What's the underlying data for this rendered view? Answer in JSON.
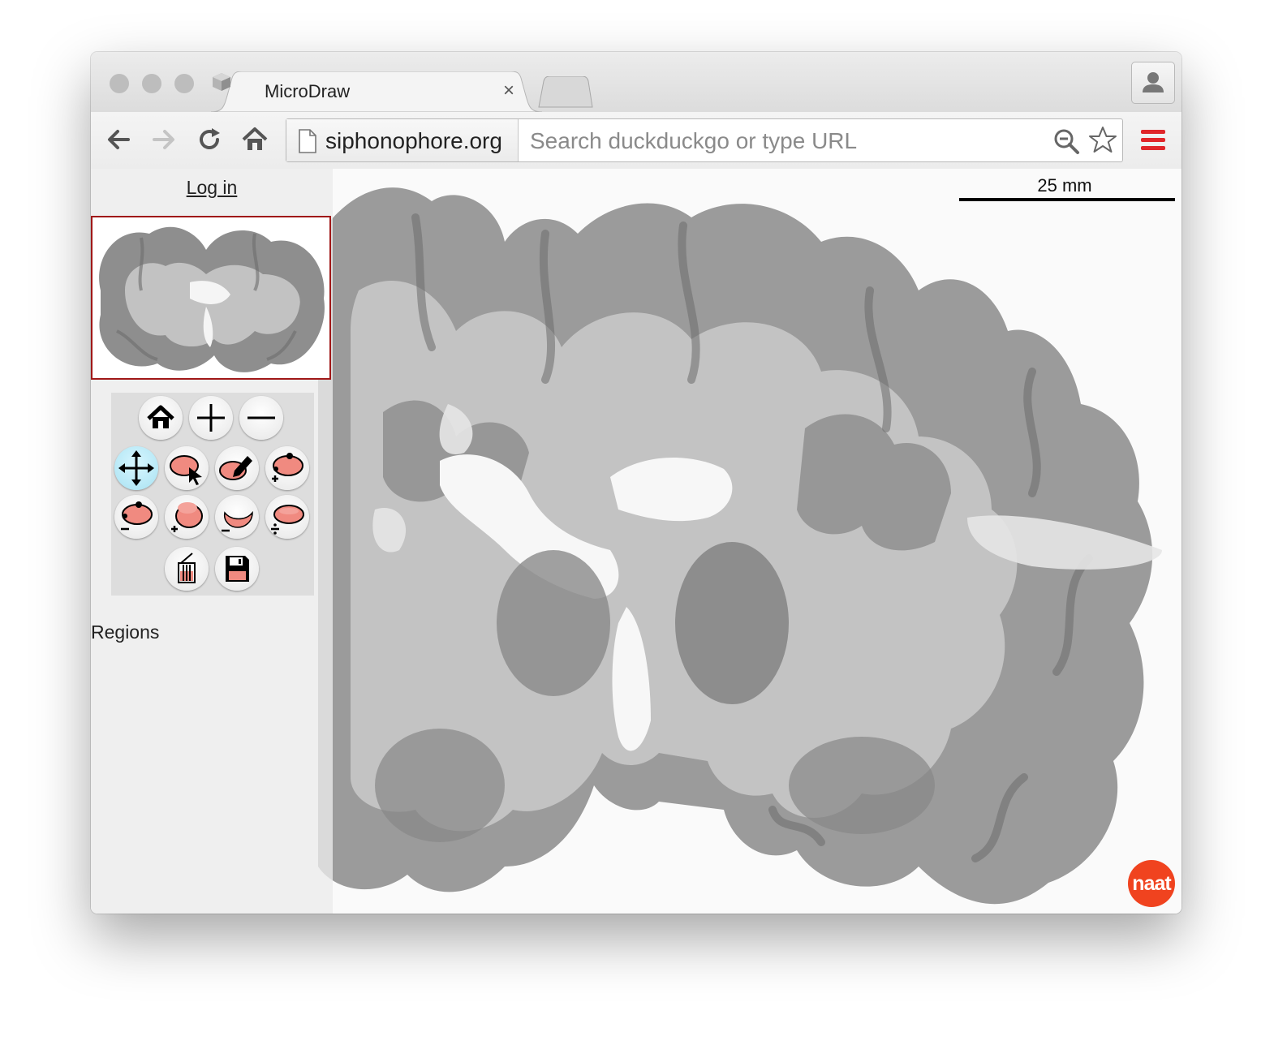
{
  "browser": {
    "tab_title": "MicroDraw",
    "tab_close": "×",
    "domain": "siphonophore.org",
    "url_placeholder": "Search duckduckgo or type URL"
  },
  "icons": {
    "back": "arrow-left-icon",
    "forward": "arrow-right-icon",
    "reload": "reload-icon",
    "home": "home-icon",
    "page": "page-icon",
    "search": "search-icon",
    "bookmark": "star-icon",
    "menu": "hamburger-menu-icon",
    "profile": "person-icon"
  },
  "sidebar": {
    "login_label": "Log in",
    "regions_label": "Regions",
    "tools": [
      {
        "name": "home",
        "icon": "home-icon"
      },
      {
        "name": "zoom-in",
        "icon": "plus-icon"
      },
      {
        "name": "zoom-out",
        "icon": "minus-icon"
      },
      {
        "name": "navigate",
        "icon": "move-arrows-icon",
        "active": true
      },
      {
        "name": "select",
        "icon": "region-select-icon"
      },
      {
        "name": "draw",
        "icon": "region-draw-icon"
      },
      {
        "name": "add-point",
        "icon": "add-point-icon"
      },
      {
        "name": "delete-point",
        "icon": "delete-point-icon"
      },
      {
        "name": "add-region",
        "icon": "add-region-icon"
      },
      {
        "name": "subtract-region",
        "icon": "subtract-region-icon"
      },
      {
        "name": "split-region",
        "icon": "split-region-icon"
      },
      {
        "name": "delete",
        "icon": "trash-icon"
      },
      {
        "name": "save",
        "icon": "floppy-disk-icon"
      }
    ]
  },
  "viewer": {
    "scale_label": "25 mm",
    "badge_label": "naat"
  },
  "colors": {
    "accent_red": "#e0262a",
    "active_tool": "#a8e2f2",
    "region_fill": "#f08a80",
    "badge": "#f0431f",
    "thumbnail_border": "#a01818"
  }
}
